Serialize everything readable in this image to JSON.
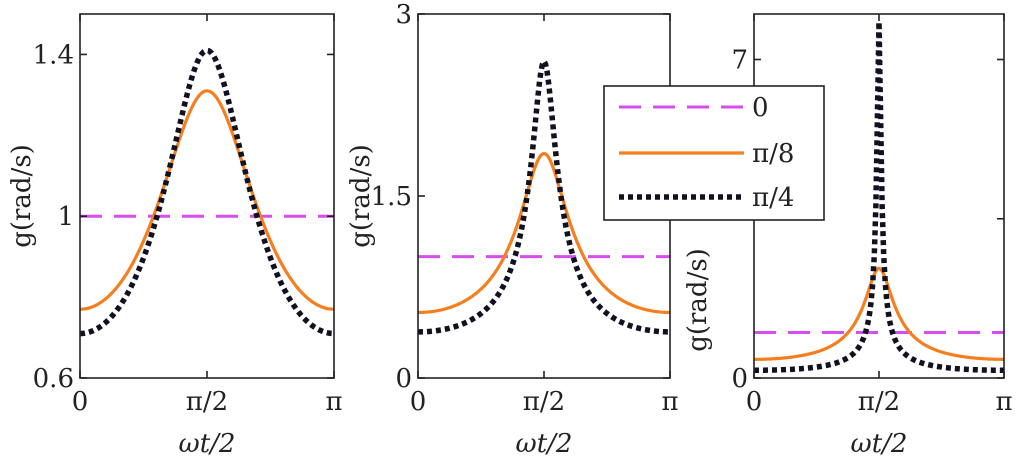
{
  "chart_data": [
    {
      "type": "line",
      "panel": "left",
      "ylabel": "g(rad/s)",
      "xlabel": "ωt/2",
      "x_ticks": [
        "0",
        "π/2",
        "π"
      ],
      "y_ticks": [
        {
          "value": 0.6,
          "label": "0.6"
        },
        {
          "value": 1.0,
          "label": "1"
        },
        {
          "value": 1.4,
          "label": "1.4"
        }
      ],
      "xlim": [
        0,
        3.1416
      ],
      "ylim": [
        0.6,
        1.5
      ],
      "series": [
        {
          "name": "0",
          "style": "dashed",
          "values": {
            "min": 1.0,
            "max": 1.0
          }
        },
        {
          "name": "π/8",
          "style": "solid",
          "values": {
            "min": 0.77,
            "max": 1.31
          }
        },
        {
          "name": "π/4",
          "style": "dotted",
          "values": {
            "min": 0.71,
            "max": 1.41
          }
        }
      ]
    },
    {
      "type": "line",
      "panel": "middle",
      "ylabel": "g(rad/s)",
      "xlabel": "ωt/2",
      "x_ticks": [
        "0",
        "π/2",
        "π"
      ],
      "y_ticks": [
        {
          "value": 0,
          "label": "0"
        },
        {
          "value": 1.5,
          "label": "1.5"
        },
        {
          "value": 3,
          "label": "3"
        }
      ],
      "xlim": [
        0,
        3.1416
      ],
      "ylim": [
        0,
        3
      ],
      "series": [
        {
          "name": "0",
          "style": "dashed",
          "values": {
            "min": 1.0,
            "max": 1.0
          }
        },
        {
          "name": "π/8",
          "style": "solid",
          "values": {
            "min": 0.54,
            "max": 1.85
          }
        },
        {
          "name": "π/4",
          "style": "dotted",
          "values": {
            "min": 0.38,
            "max": 2.61
          }
        }
      ]
    },
    {
      "type": "line",
      "panel": "right",
      "ylabel": "g(rad/s)",
      "xlabel": "ωt/2",
      "x_ticks": [
        "0",
        "π/2",
        "π"
      ],
      "y_ticks": [
        {
          "value": 0,
          "label": "0"
        },
        {
          "value": 3.5,
          "label": ""
        },
        {
          "value": 7,
          "label": "7"
        }
      ],
      "xlim": [
        0,
        3.1416
      ],
      "ylim": [
        0,
        8
      ],
      "series": [
        {
          "name": "0",
          "style": "dashed",
          "values": {
            "min": 1.0,
            "max": 1.0
          }
        },
        {
          "name": "π/8",
          "style": "solid",
          "values": {
            "min": 0.41,
            "max": 2.41
          }
        },
        {
          "name": "π/4",
          "style": "dotted",
          "values": {
            "min": 0.17,
            "max": 7.83
          }
        }
      ]
    }
  ],
  "legend": {
    "placement": "upper-right of middle panel",
    "entries": [
      {
        "label": "0",
        "style": "dashed",
        "color": "#d94cf0"
      },
      {
        "label": "π/8",
        "style": "solid",
        "color": "#f57e1f"
      },
      {
        "label": "π/4",
        "style": "dotted",
        "color": "#111122"
      }
    ]
  },
  "colors": {
    "dashed": "#d94cf0",
    "solid": "#f57e1f",
    "dotted": "#111122",
    "axes": "#222222"
  }
}
